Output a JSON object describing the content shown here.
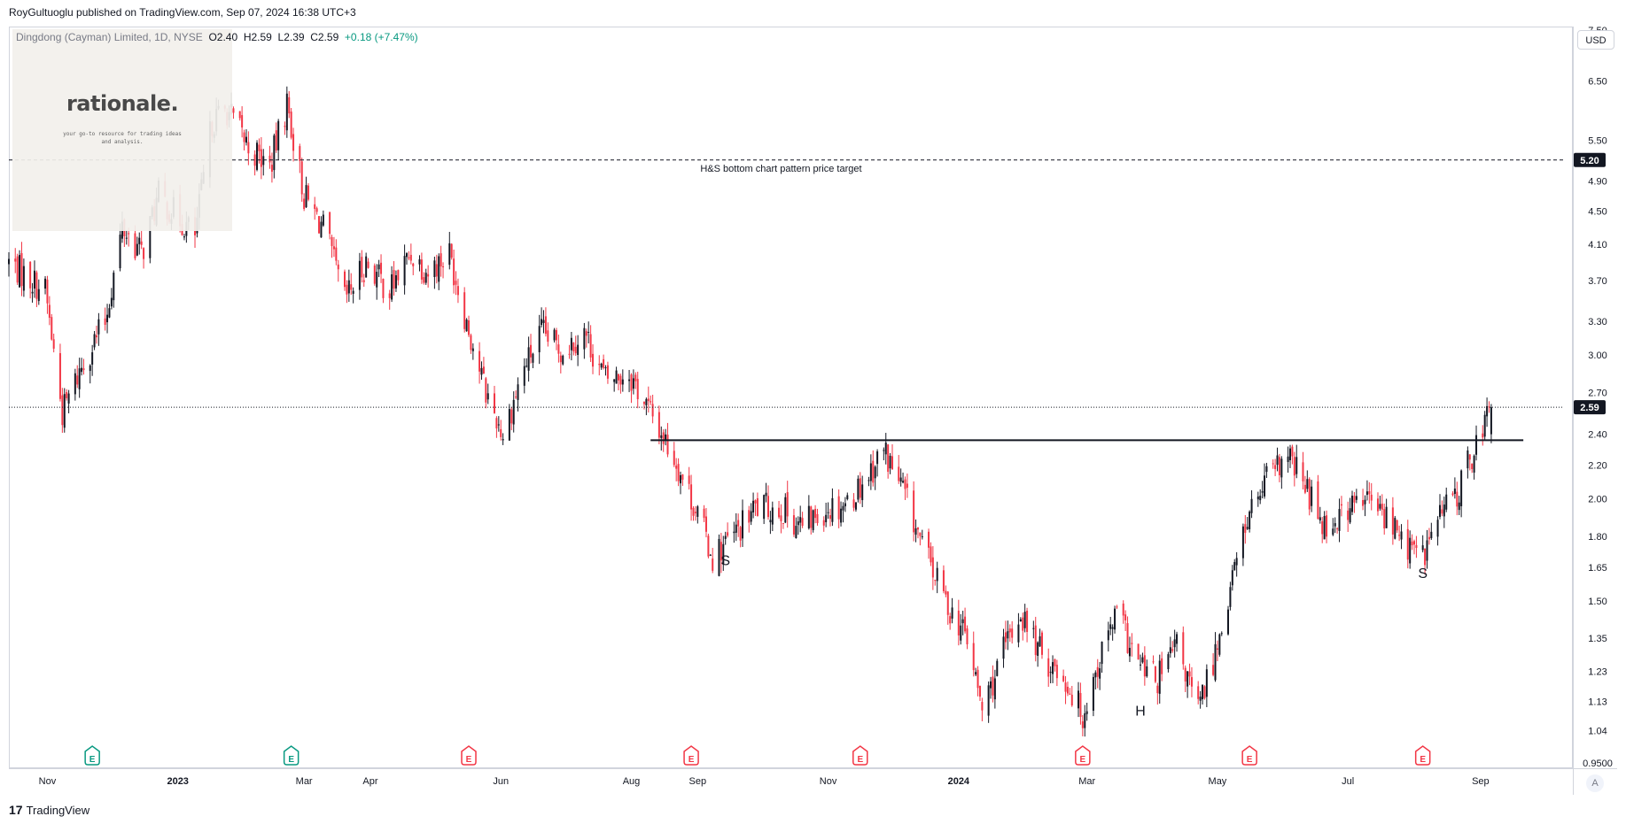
{
  "header": {
    "publisher_line": "RoyGultuoglu published on TradingView.com, Sep 07, 2024 16:38 UTC+3"
  },
  "legend": {
    "symbol": "Dingdong (Cayman) Limited, 1D, NYSE",
    "open": "O2.40",
    "high": "H2.59",
    "low": "L2.39",
    "close": "C2.59",
    "change": "+0.18 (+7.47%)"
  },
  "watermark": {
    "brand": "rationale.",
    "tagline": "your go-to resource for trading ideas and analysis."
  },
  "currency": "USD",
  "auto_button": "A",
  "footer": {
    "logo_glyph": "17",
    "label": "TradingView"
  },
  "colors": {
    "up": "#131722",
    "down": "#f23645",
    "earnings_badge_up": "#089981",
    "earnings_badge_down": "#f23645",
    "text": "#131722",
    "grid_axis": "#d1d4dc"
  },
  "chart_data": {
    "type": "candlestick",
    "scale": "log",
    "ylim": [
      0.95,
      7.5
    ],
    "x_range": [
      "2022-10-14",
      "2024-10-10"
    ],
    "y_ticks": [
      "7.50",
      "6.50",
      "5.50",
      "4.90",
      "4.50",
      "4.10",
      "3.70",
      "3.30",
      "3.00",
      "2.70",
      "2.40",
      "2.20",
      "2.00",
      "1.80",
      "1.65",
      "1.50",
      "1.35",
      "1.23",
      "1.13",
      "1.04",
      "0.9500"
    ],
    "x_ticks": [
      {
        "date": "2022-11-01",
        "label": "Nov",
        "bold": false
      },
      {
        "date": "2023-01-01",
        "label": "2023",
        "bold": true
      },
      {
        "date": "2023-03-01",
        "label": "Mar",
        "bold": false
      },
      {
        "date": "2023-04-01",
        "label": "Apr",
        "bold": false
      },
      {
        "date": "2023-06-01",
        "label": "Jun",
        "bold": false
      },
      {
        "date": "2023-08-01",
        "label": "Aug",
        "bold": false
      },
      {
        "date": "2023-09-01",
        "label": "Sep",
        "bold": false
      },
      {
        "date": "2023-11-01",
        "label": "Nov",
        "bold": false
      },
      {
        "date": "2024-01-01",
        "label": "2024",
        "bold": true
      },
      {
        "date": "2024-03-01",
        "label": "Mar",
        "bold": false
      },
      {
        "date": "2024-05-01",
        "label": "May",
        "bold": false
      },
      {
        "date": "2024-07-01",
        "label": "Jul",
        "bold": false
      },
      {
        "date": "2024-09-01",
        "label": "Sep",
        "bold": false
      }
    ],
    "price_path": [
      [
        "2022-10-14",
        3.9
      ],
      [
        "2022-10-31",
        3.6
      ],
      [
        "2022-11-08",
        2.55
      ],
      [
        "2022-11-18",
        2.95
      ],
      [
        "2022-11-28",
        3.3
      ],
      [
        "2022-12-06",
        4.3
      ],
      [
        "2022-12-15",
        4.0
      ],
      [
        "2022-12-23",
        4.7
      ],
      [
        "2023-01-02",
        4.4
      ],
      [
        "2023-01-09",
        4.2
      ],
      [
        "2023-01-17",
        5.8
      ],
      [
        "2023-01-24",
        6.0
      ],
      [
        "2023-02-03",
        5.4
      ],
      [
        "2023-02-13",
        5.1
      ],
      [
        "2023-02-21",
        6.1
      ],
      [
        "2023-03-01",
        4.7
      ],
      [
        "2023-03-10",
        4.3
      ],
      [
        "2023-03-20",
        3.5
      ],
      [
        "2023-03-30",
        3.9
      ],
      [
        "2023-04-10",
        3.6
      ],
      [
        "2023-04-20",
        4.0
      ],
      [
        "2023-04-28",
        3.8
      ],
      [
        "2023-05-08",
        4.0
      ],
      [
        "2023-05-16",
        3.3
      ],
      [
        "2023-05-25",
        2.7
      ],
      [
        "2023-06-02",
        2.4
      ],
      [
        "2023-06-12",
        2.9
      ],
      [
        "2023-06-20",
        3.2
      ],
      [
        "2023-06-29",
        3.05
      ],
      [
        "2023-07-10",
        3.2
      ],
      [
        "2023-07-20",
        2.8
      ],
      [
        "2023-07-31",
        2.85
      ],
      [
        "2023-08-10",
        2.55
      ],
      [
        "2023-08-21",
        2.25
      ],
      [
        "2023-08-31",
        1.95
      ],
      [
        "2023-09-08",
        1.7
      ],
      [
        "2023-09-18",
        1.8
      ],
      [
        "2023-09-28",
        1.95
      ],
      [
        "2023-10-10",
        1.95
      ],
      [
        "2023-10-20",
        1.85
      ],
      [
        "2023-10-31",
        1.95
      ],
      [
        "2023-11-10",
        1.98
      ],
      [
        "2023-11-20",
        2.15
      ],
      [
        "2023-11-27",
        2.3
      ],
      [
        "2023-12-06",
        2.05
      ],
      [
        "2023-12-15",
        1.75
      ],
      [
        "2023-12-26",
        1.5
      ],
      [
        "2024-01-05",
        1.35
      ],
      [
        "2024-01-12",
        1.1
      ],
      [
        "2024-01-22",
        1.3
      ],
      [
        "2024-01-30",
        1.45
      ],
      [
        "2024-02-08",
        1.3
      ],
      [
        "2024-02-20",
        1.2
      ],
      [
        "2024-02-28",
        1.09
      ],
      [
        "2024-03-08",
        1.3
      ],
      [
        "2024-03-15",
        1.45
      ],
      [
        "2024-03-25",
        1.25
      ],
      [
        "2024-04-03",
        1.2
      ],
      [
        "2024-04-12",
        1.32
      ],
      [
        "2024-04-22",
        1.1
      ],
      [
        "2024-04-30",
        1.3
      ],
      [
        "2024-05-08",
        1.6
      ],
      [
        "2024-05-15",
        1.9
      ],
      [
        "2024-05-24",
        2.1
      ],
      [
        "2024-06-03",
        2.25
      ],
      [
        "2024-06-12",
        2.05
      ],
      [
        "2024-06-21",
        1.85
      ],
      [
        "2024-07-01",
        1.95
      ],
      [
        "2024-07-10",
        2.0
      ],
      [
        "2024-07-19",
        1.9
      ],
      [
        "2024-07-29",
        1.75
      ],
      [
        "2024-08-05",
        1.7
      ],
      [
        "2024-08-12",
        1.9
      ],
      [
        "2024-08-22",
        2.05
      ],
      [
        "2024-08-30",
        2.35
      ],
      [
        "2024-09-06",
        2.59
      ]
    ],
    "last_price": {
      "value": "2.59",
      "y": 2.59
    },
    "target_line": {
      "value": "5.20",
      "y": 5.2,
      "label": "H&S bottom chart pattern price target",
      "label_date": "2023-10-10"
    },
    "neckline": {
      "y": 2.36,
      "start": "2023-08-10",
      "end": "2024-09-21"
    },
    "pattern_labels": [
      {
        "text": "S",
        "date": "2023-09-14",
        "y": 1.68
      },
      {
        "text": "H",
        "date": "2024-03-26",
        "y": 1.1
      },
      {
        "text": "S",
        "date": "2024-08-05",
        "y": 1.62
      }
    ],
    "events": [
      {
        "date": "2022-11-22",
        "type": "up",
        "label": "E"
      },
      {
        "date": "2023-02-23",
        "type": "up",
        "label": "E"
      },
      {
        "date": "2023-05-17",
        "type": "down",
        "label": "E"
      },
      {
        "date": "2023-08-29",
        "type": "down",
        "label": "E"
      },
      {
        "date": "2023-11-16",
        "type": "down",
        "label": "E"
      },
      {
        "date": "2024-02-28",
        "type": "down",
        "label": "E"
      },
      {
        "date": "2024-05-16",
        "type": "down",
        "label": "E"
      },
      {
        "date": "2024-08-05",
        "type": "down",
        "label": "E"
      }
    ]
  }
}
